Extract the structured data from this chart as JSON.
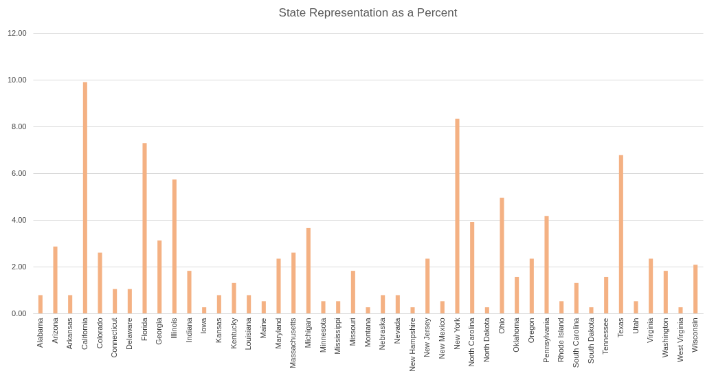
{
  "chart_data": {
    "type": "bar",
    "title": "State Representation as a Percent",
    "categories": [
      "Alabama",
      "Arizona",
      "Arkansas",
      "California",
      "Colorado",
      "Connecticut",
      "Delaware",
      "Florida",
      "Georgia",
      "Illinois",
      "Indiana",
      "Iowa",
      "Kansas",
      "Kentucky",
      "Louisiana",
      "Maine",
      "Maryland",
      "Massachusetts",
      "Michigan",
      "Minnesota",
      "Mississippi",
      "Missouri",
      "Montana",
      "Nebraska",
      "Nevada",
      "New Hampshire",
      "New Jersey",
      "New Mexico",
      "New York",
      "North Carolina",
      "North Dakota",
      "Ohio",
      "Oklahoma",
      "Oregon",
      "Pennsylvania",
      "Rhode Island",
      "South Carolina",
      "South Dakota",
      "Tennessee",
      "Texas",
      "Utah",
      "Virginia",
      "Washington",
      "West Virginia",
      "Wisconsin"
    ],
    "values": [
      0.78,
      2.86,
      0.78,
      9.9,
      2.6,
      1.04,
      1.04,
      7.29,
      3.12,
      5.73,
      1.82,
      0.26,
      0.78,
      1.3,
      0.78,
      0.52,
      2.34,
      2.6,
      3.65,
      0.52,
      0.52,
      1.82,
      0.26,
      0.78,
      0.78,
      0.26,
      2.34,
      0.52,
      8.33,
      3.91,
      0.26,
      4.95,
      1.56,
      2.34,
      4.17,
      0.52,
      1.3,
      0.26,
      1.56,
      6.77,
      0.52,
      2.34,
      1.82,
      0.26,
      2.08
    ],
    "color": "#f4b183",
    "ylim": [
      0,
      12
    ],
    "yticks": [
      {
        "value": 0,
        "label": "0.00"
      },
      {
        "value": 2,
        "label": "2.00"
      },
      {
        "value": 4,
        "label": "4.00"
      },
      {
        "value": 6,
        "label": "6.00"
      },
      {
        "value": 8,
        "label": "8.00"
      },
      {
        "value": 10,
        "label": "10.00"
      },
      {
        "value": 12,
        "label": "12.00"
      }
    ],
    "grid": "y"
  }
}
